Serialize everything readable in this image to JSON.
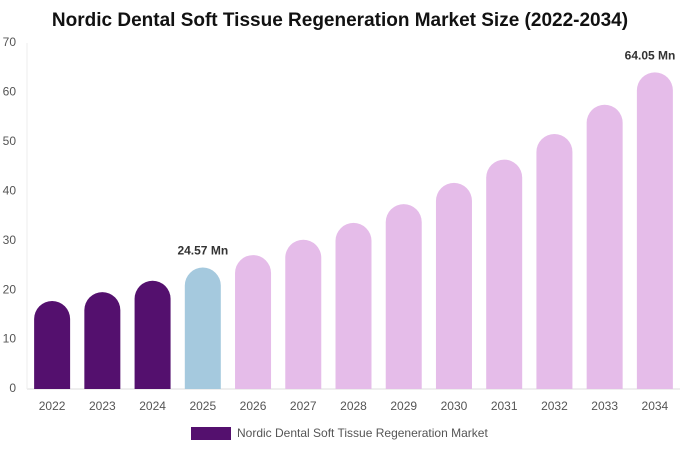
{
  "chart_data": {
    "type": "bar",
    "title": "Nordic Dental Soft Tissue Regeneration Market Size (2022-2034)",
    "categories": [
      "2022",
      "2023",
      "2024",
      "2025",
      "2026",
      "2027",
      "2028",
      "2029",
      "2030",
      "2031",
      "2032",
      "2033",
      "2034"
    ],
    "series": [
      {
        "name": "Nordic Dental Soft Tissue Regeneration Market",
        "color": "#54106e",
        "values": [
          17.8,
          19.6,
          21.9,
          24.57,
          27.1,
          30.2,
          33.6,
          37.4,
          41.7,
          46.4,
          51.6,
          57.5,
          64.05
        ],
        "value_labels": [
          null,
          null,
          null,
          "24.57 Mn",
          null,
          null,
          null,
          null,
          null,
          null,
          null,
          null,
          "64.05 Mn"
        ],
        "colors": [
          "#54106e",
          "#54106e",
          "#54106e",
          "#a5c9de",
          "#e5bce9",
          "#e5bce9",
          "#e5bce9",
          "#e5bce9",
          "#e5bce9",
          "#e5bce9",
          "#e5bce9",
          "#e5bce9",
          "#e5bce9"
        ]
      }
    ],
    "ylim": [
      0,
      70
    ],
    "yticks": [
      0,
      10,
      20,
      30,
      40,
      50,
      60,
      70
    ],
    "grid": false
  }
}
